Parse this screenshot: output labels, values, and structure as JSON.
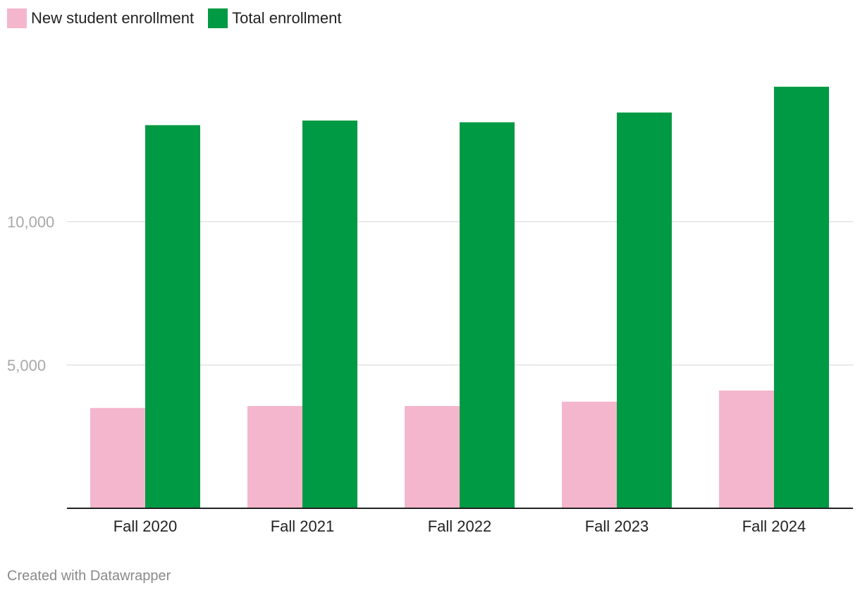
{
  "footer": {
    "credit": "Created with Datawrapper"
  },
  "chart_data": {
    "type": "bar",
    "title": "",
    "xlabel": "",
    "ylabel": "",
    "categories": [
      "Fall 2020",
      "Fall 2021",
      "Fall 2022",
      "Fall 2023",
      "Fall 2024"
    ],
    "series": [
      {
        "name": "New student enrollment",
        "color": "#f4b6cd",
        "values": [
          3500,
          3570,
          3570,
          3720,
          4110
        ]
      },
      {
        "name": "Total enrollment",
        "color": "#009a44",
        "values": [
          13370,
          13530,
          13470,
          13810,
          14710
        ]
      }
    ],
    "yticks": [
      {
        "value": 5000,
        "label": "5,000"
      },
      {
        "value": 10000,
        "label": "10,000"
      }
    ],
    "ylim": [
      0,
      15000
    ],
    "grid": true,
    "legend": "top-left"
  }
}
